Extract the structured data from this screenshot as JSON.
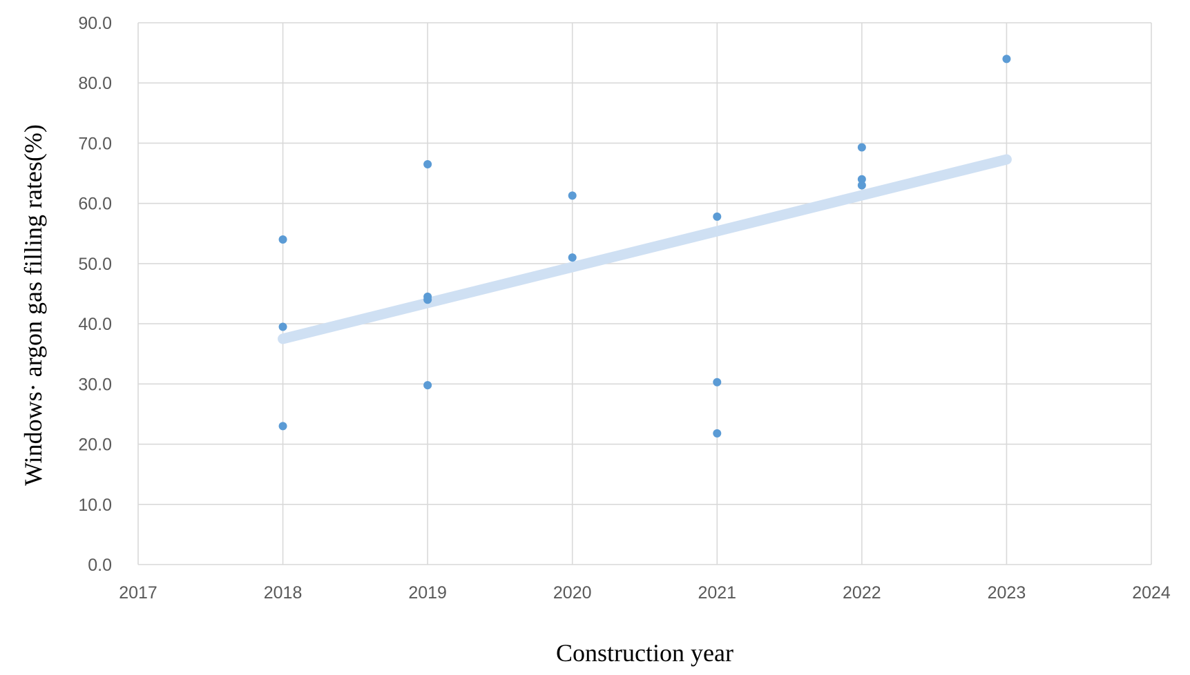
{
  "chart_data": {
    "type": "scatter",
    "title": "",
    "xlabel": "Construction year",
    "ylabel": "Windows· argon gas filling rates(%)",
    "xlim": [
      2017,
      2024
    ],
    "ylim": [
      0,
      90
    ],
    "x_ticks": [
      2017,
      2018,
      2019,
      2020,
      2021,
      2022,
      2023,
      2024
    ],
    "y_ticks": [
      0,
      10,
      20,
      30,
      40,
      50,
      60,
      70,
      80,
      90
    ],
    "x_tick_labels": [
      "2017",
      "2018",
      "2019",
      "2020",
      "2021",
      "2022",
      "2023",
      "2024"
    ],
    "y_tick_labels": [
      "0.0",
      "10.0",
      "20.0",
      "30.0",
      "40.0",
      "50.0",
      "60.0",
      "70.0",
      "80.0",
      "90.0"
    ],
    "grid": true,
    "legend": "none",
    "series": [
      {
        "points": [
          {
            "x": 2018,
            "y": 54.0
          },
          {
            "x": 2018,
            "y": 39.5
          },
          {
            "x": 2018,
            "y": 23.0
          },
          {
            "x": 2019,
            "y": 66.5
          },
          {
            "x": 2019,
            "y": 44.5
          },
          {
            "x": 2019,
            "y": 44.0
          },
          {
            "x": 2019,
            "y": 29.8
          },
          {
            "x": 2020,
            "y": 61.3
          },
          {
            "x": 2020,
            "y": 51.0
          },
          {
            "x": 2021,
            "y": 57.8
          },
          {
            "x": 2021,
            "y": 30.3
          },
          {
            "x": 2021,
            "y": 21.8
          },
          {
            "x": 2022,
            "y": 69.3
          },
          {
            "x": 2022,
            "y": 64.0
          },
          {
            "x": 2022,
            "y": 63.0
          },
          {
            "x": 2023,
            "y": 84.0
          }
        ],
        "color": "#5b9bd5"
      }
    ],
    "trendline": {
      "type": "linear",
      "x_start": 2018,
      "y_start": 37.5,
      "x_end": 2023,
      "y_end": 67.3,
      "color": "#cfe0f3"
    }
  }
}
